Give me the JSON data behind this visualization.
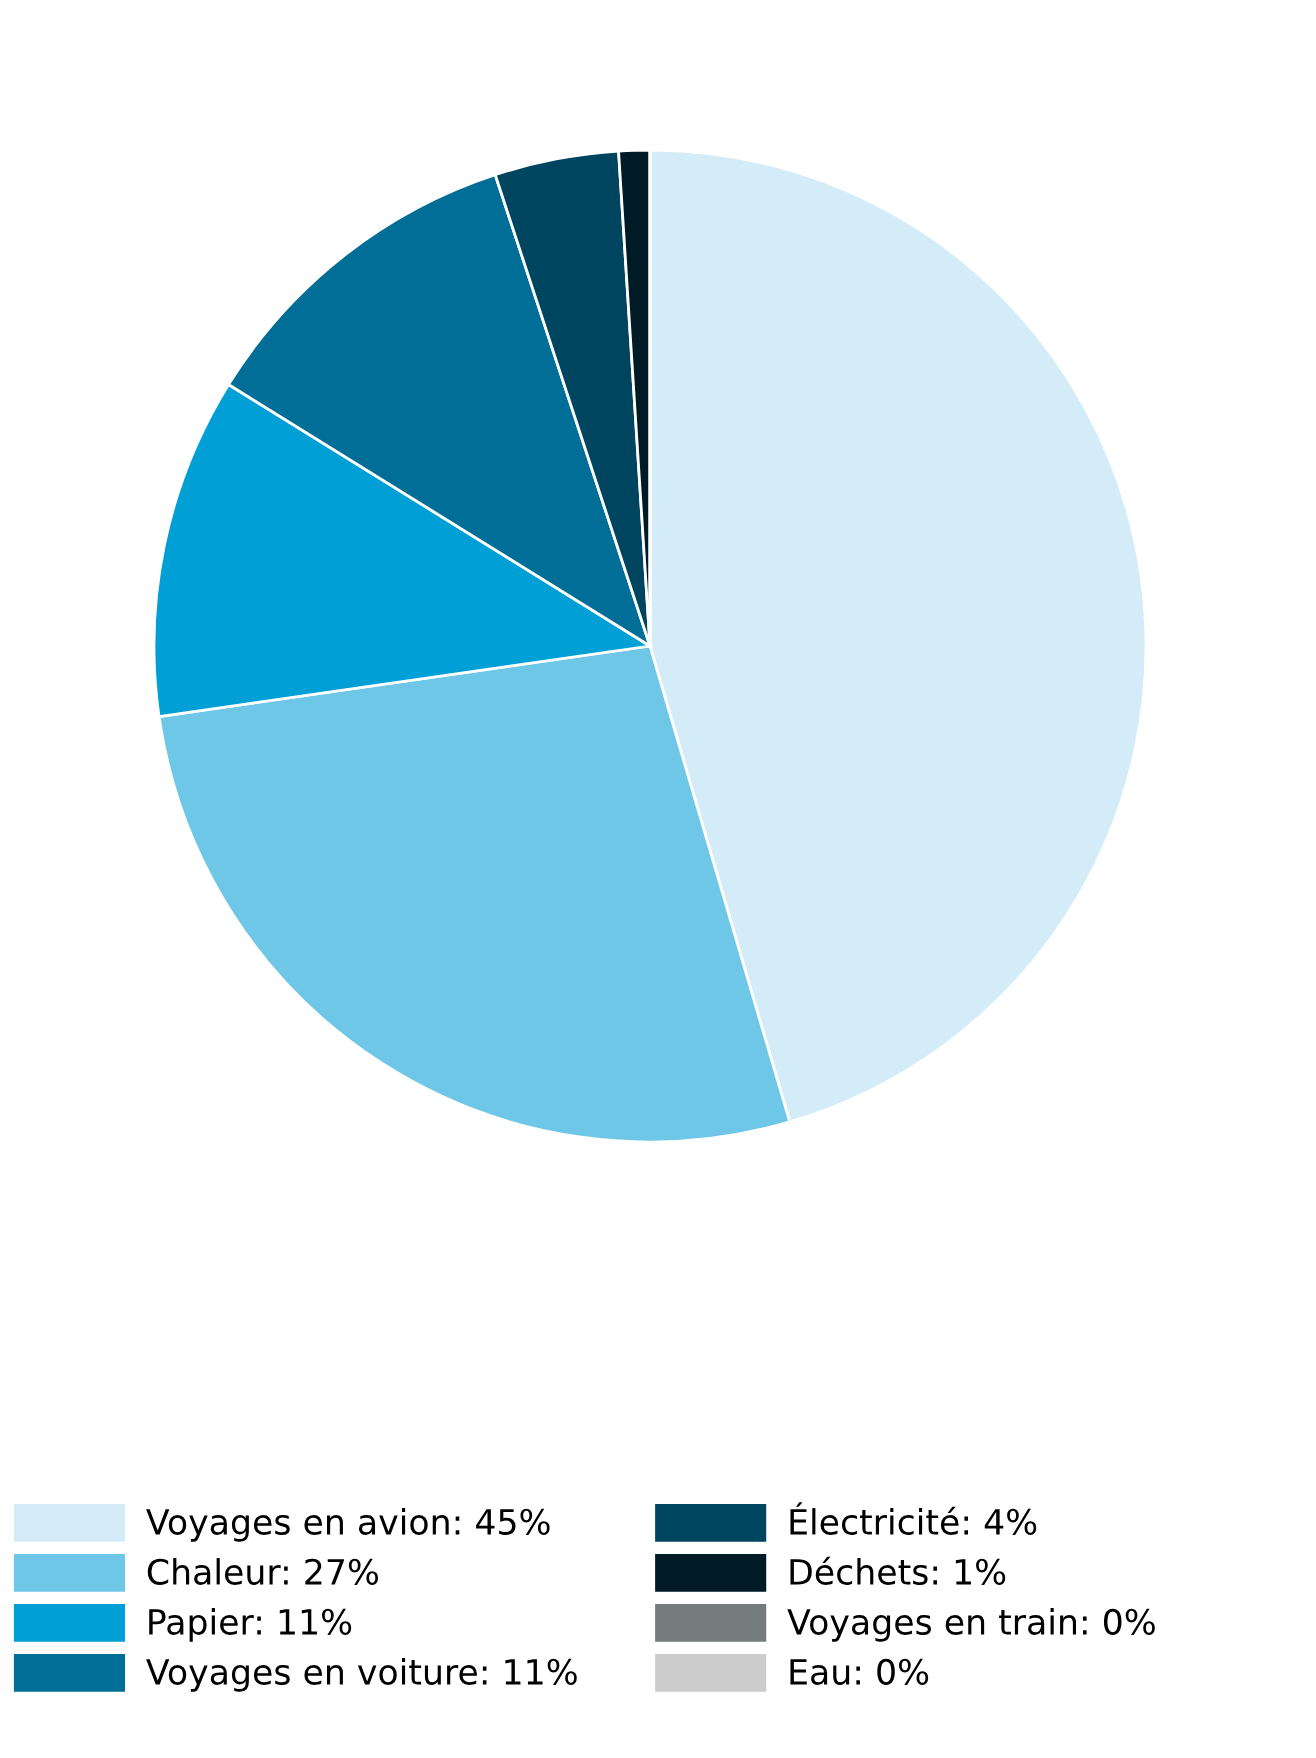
{
  "chart_data": {
    "type": "pie",
    "categories": [
      "Voyages en avion",
      "Chaleur",
      "Papier",
      "Voyages en voiture",
      "Électricité",
      "Déchets",
      "Voyages en train",
      "Eau"
    ],
    "values": [
      45,
      27,
      11,
      11,
      4,
      1,
      0,
      0
    ],
    "value_labels": [
      "45%",
      "27%",
      "11%",
      "11%",
      "4%",
      "1%",
      "0%",
      "0%"
    ],
    "colors": [
      "#d4ecf7",
      "#6fc7e8",
      "#009fd6",
      "#006e96",
      "#004560",
      "#001a26",
      "#737b7d",
      "#cccccc"
    ],
    "legend": "bottom"
  }
}
